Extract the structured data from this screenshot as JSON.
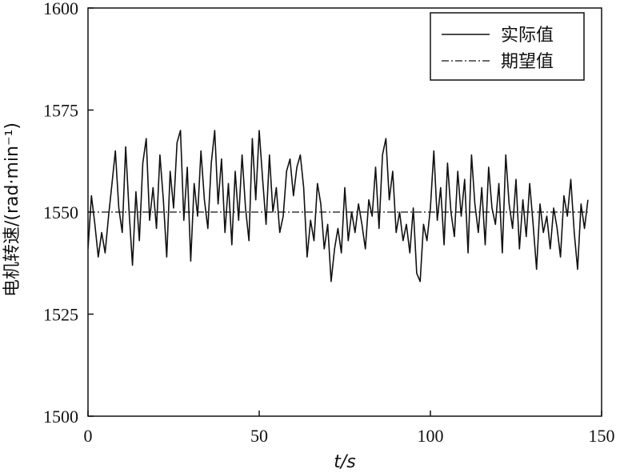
{
  "chart_data": {
    "type": "line",
    "title": "",
    "xlabel": "t/s",
    "ylabel": "电机转速/(rad·min⁻¹)",
    "xlim": [
      0,
      150
    ],
    "ylim": [
      1500,
      1600
    ],
    "xticks": [
      0,
      50,
      100,
      150
    ],
    "yticks": [
      1500,
      1525,
      1550,
      1575,
      1600
    ],
    "grid": false,
    "legend_position": "top-right",
    "series": [
      {
        "name": "实际值",
        "style": "solid",
        "x": [
          0,
          1,
          2,
          3,
          4,
          5,
          6,
          7,
          8,
          9,
          10,
          11,
          12,
          13,
          14,
          15,
          16,
          17,
          18,
          19,
          20,
          21,
          22,
          23,
          24,
          25,
          26,
          27,
          28,
          29,
          30,
          31,
          32,
          33,
          34,
          35,
          36,
          37,
          38,
          39,
          40,
          41,
          42,
          43,
          44,
          45,
          46,
          47,
          48,
          49,
          50,
          51,
          52,
          53,
          54,
          55,
          56,
          57,
          58,
          59,
          60,
          61,
          62,
          63,
          64,
          65,
          66,
          67,
          68,
          69,
          70,
          71,
          72,
          73,
          74,
          75,
          76,
          77,
          78,
          79,
          80,
          81,
          82,
          83,
          84,
          85,
          86,
          87,
          88,
          89,
          90,
          91,
          92,
          93,
          94,
          95,
          96,
          97,
          98,
          99,
          100,
          101,
          102,
          103,
          104,
          105,
          106,
          107,
          108,
          109,
          110,
          111,
          112,
          113,
          114,
          115,
          116,
          117,
          118,
          119,
          120,
          121,
          122,
          123,
          124,
          125,
          126,
          127,
          128,
          129,
          130,
          131,
          132,
          133,
          134,
          135,
          136,
          137,
          138,
          139,
          140,
          141,
          142,
          143,
          144,
          145,
          146
        ],
        "values": [
          1541,
          1554,
          1547,
          1539,
          1545,
          1540,
          1549,
          1557,
          1565,
          1551,
          1545,
          1566,
          1550,
          1537,
          1555,
          1543,
          1562,
          1568,
          1548,
          1556,
          1546,
          1564,
          1553,
          1539,
          1560,
          1551,
          1567,
          1570,
          1548,
          1561,
          1538,
          1557,
          1549,
          1565,
          1553,
          1546,
          1562,
          1570,
          1552,
          1563,
          1545,
          1557,
          1542,
          1560,
          1548,
          1564,
          1551,
          1543,
          1568,
          1553,
          1570,
          1558,
          1547,
          1564,
          1550,
          1556,
          1545,
          1549,
          1560,
          1563,
          1554,
          1561,
          1564,
          1556,
          1539,
          1548,
          1543,
          1557,
          1552,
          1541,
          1547,
          1533,
          1541,
          1546,
          1540,
          1556,
          1543,
          1550,
          1545,
          1552,
          1547,
          1541,
          1553,
          1549,
          1561,
          1546,
          1564,
          1568,
          1553,
          1560,
          1545,
          1550,
          1543,
          1547,
          1540,
          1551,
          1535,
          1533,
          1547,
          1543,
          1551,
          1565,
          1548,
          1556,
          1542,
          1562,
          1550,
          1544,
          1560,
          1549,
          1558,
          1540,
          1564,
          1552,
          1545,
          1556,
          1542,
          1561,
          1551,
          1547,
          1557,
          1540,
          1564,
          1552,
          1546,
          1558,
          1541,
          1553,
          1544,
          1557,
          1547,
          1536,
          1552,
          1545,
          1549,
          1541,
          1551,
          1546,
          1539,
          1554,
          1549,
          1558,
          1545,
          1536,
          1552,
          1546,
          1553
        ]
      },
      {
        "name": "期望值",
        "style": "dash-dot",
        "x": [
          0,
          146
        ],
        "values": [
          1550,
          1550
        ]
      }
    ]
  }
}
